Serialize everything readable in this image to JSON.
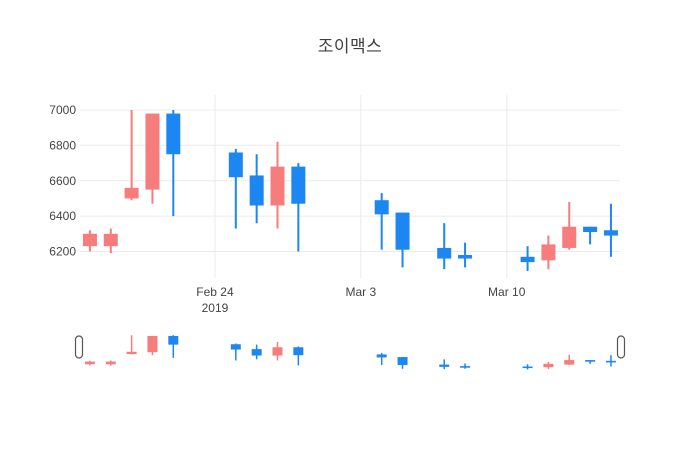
{
  "title": "조이맥스",
  "chart_data": {
    "type": "candlestick",
    "title": "조이맥스",
    "xlabel": "",
    "ylabel": "",
    "grid": true,
    "legend": "none",
    "ylim": [
      6050,
      7085
    ],
    "y_ticks": [
      6200,
      6400,
      6600,
      6800,
      7000
    ],
    "x_ticks": [
      {
        "label": "Feb 24",
        "sublabel": "2019",
        "date": "2019-02-24"
      },
      {
        "label": "Mar 3",
        "sublabel": "",
        "date": "2019-03-03"
      },
      {
        "label": "Mar 10",
        "sublabel": "",
        "date": "2019-03-10"
      }
    ],
    "colors": {
      "increasing": "#F77C7C",
      "decreasing": "#1C86F2",
      "grid": "#EBEBEB",
      "tick_text": "#444444",
      "title_text": "#3F3F3F",
      "handle_border": "#555555",
      "background": "#FFFFFF"
    },
    "candles": [
      {
        "date": "2019-02-18",
        "open": 6230,
        "high": 6320,
        "low": 6200,
        "close": 6300
      },
      {
        "date": "2019-02-19",
        "open": 6230,
        "high": 6330,
        "low": 6190,
        "close": 6300
      },
      {
        "date": "2019-02-20",
        "open": 6500,
        "high": 7000,
        "low": 6490,
        "close": 6560
      },
      {
        "date": "2019-02-21",
        "open": 6550,
        "high": 6980,
        "low": 6470,
        "close": 6980
      },
      {
        "date": "2019-02-22",
        "open": 6980,
        "high": 7000,
        "low": 6400,
        "close": 6750
      },
      {
        "date": "2019-02-25",
        "open": 6760,
        "high": 6780,
        "low": 6330,
        "close": 6620
      },
      {
        "date": "2019-02-26",
        "open": 6630,
        "high": 6750,
        "low": 6360,
        "close": 6460
      },
      {
        "date": "2019-02-27",
        "open": 6460,
        "high": 6820,
        "low": 6330,
        "close": 6680
      },
      {
        "date": "2019-02-28",
        "open": 6680,
        "high": 6700,
        "low": 6200,
        "close": 6470
      },
      {
        "date": "2019-03-04",
        "open": 6490,
        "high": 6530,
        "low": 6210,
        "close": 6410
      },
      {
        "date": "2019-03-05",
        "open": 6420,
        "high": 6420,
        "low": 6110,
        "close": 6210
      },
      {
        "date": "2019-03-07",
        "open": 6220,
        "high": 6360,
        "low": 6100,
        "close": 6160
      },
      {
        "date": "2019-03-08",
        "open": 6180,
        "high": 6250,
        "low": 6110,
        "close": 6160
      },
      {
        "date": "2019-03-11",
        "open": 6170,
        "high": 6230,
        "low": 6090,
        "close": 6140
      },
      {
        "date": "2019-03-12",
        "open": 6150,
        "high": 6290,
        "low": 6100,
        "close": 6240
      },
      {
        "date": "2019-03-13",
        "open": 6220,
        "high": 6480,
        "low": 6210,
        "close": 6340
      },
      {
        "date": "2019-03-14",
        "open": 6340,
        "high": 6340,
        "low": 6240,
        "close": 6310
      },
      {
        "date": "2019-03-15",
        "open": 6320,
        "high": 6470,
        "low": 6170,
        "close": 6290
      }
    ],
    "rangeslider": {
      "visible": true,
      "full_range_selected": true
    }
  }
}
